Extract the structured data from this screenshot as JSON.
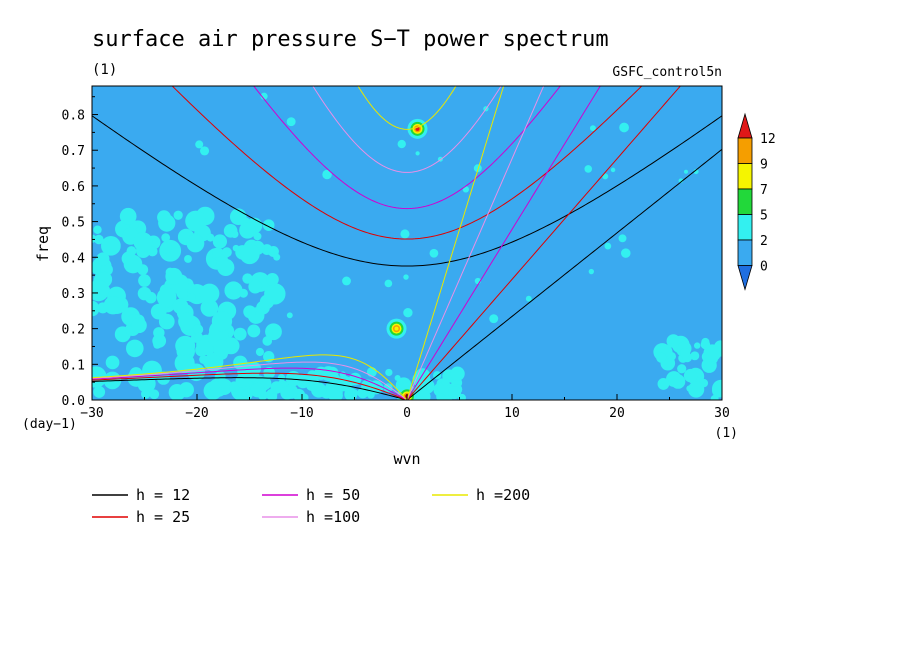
{
  "chart_data": {
    "type": "heatmap",
    "title": "surface air pressure S−T power spectrum",
    "subtitle_left": "(1)",
    "subtitle_right": "GSFC_control5n",
    "xlabel": "wvn",
    "ylabel": "freq",
    "xunit": "(1)",
    "yunit": "(day−1)",
    "xlim": [
      -30,
      30
    ],
    "ylim": [
      0,
      0.88
    ],
    "xticks": [
      -30,
      -20,
      -10,
      0,
      10,
      20,
      30
    ],
    "xtick_labels": [
      "−30",
      "−20",
      "−10",
      "0",
      "10",
      "20",
      "30"
    ],
    "yticks": [
      0.0,
      0.1,
      0.2,
      0.3,
      0.4,
      0.5,
      0.6,
      0.7,
      0.8
    ],
    "ytick_labels": [
      "0.0",
      "0.1",
      "0.2",
      "0.3",
      "0.4",
      "0.5",
      "0.6",
      "0.7",
      "0.8"
    ],
    "background_level_color": "#3aaaf0",
    "colorbar": {
      "labels": [
        "0",
        "2",
        "5",
        "7",
        "9",
        "12"
      ],
      "colors": [
        "#1f6fe0",
        "#3aaaf0",
        "#33f0f0",
        "#22d83a",
        "#f5f500",
        "#f59e00",
        "#e01818"
      ]
    },
    "hotspots": [
      {
        "wvn": 1,
        "freq": 0.76,
        "peak": "12+",
        "color": "#e01818"
      },
      {
        "wvn": -1,
        "freq": 0.2,
        "peak": "7",
        "color": "#f5f500"
      },
      {
        "wvn": 0,
        "freq": 0.01,
        "peak": "12",
        "color": "#e01818"
      }
    ],
    "series": [
      {
        "name": "h = 12",
        "equivalent_depth": 12,
        "color": "#000000"
      },
      {
        "name": "h = 25",
        "equivalent_depth": 25,
        "color": "#e00000"
      },
      {
        "name": "h = 50",
        "equivalent_depth": 50,
        "color": "#d000d0"
      },
      {
        "name": "h =100",
        "equivalent_depth": 100,
        "color": "#e890e8"
      },
      {
        "name": "h =200",
        "equivalent_depth": 200,
        "color": "#e8e800"
      }
    ],
    "grid": false,
    "legend_position": "bottom-left"
  }
}
